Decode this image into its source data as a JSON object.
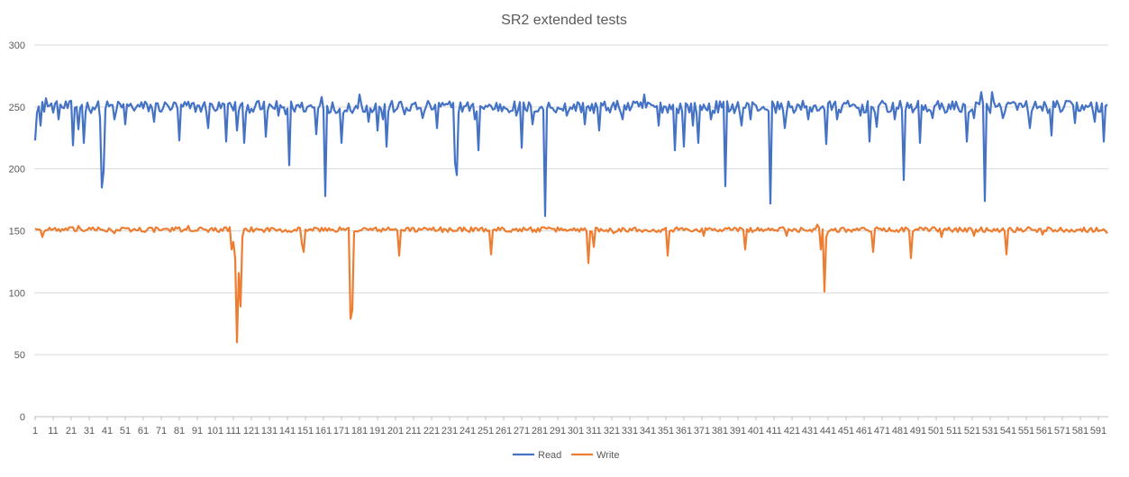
{
  "chart_data": {
    "type": "line",
    "title": "SR2 extended tests",
    "xlabel": "",
    "ylabel": "",
    "ylim": [
      0,
      300
    ],
    "yticks": [
      0,
      50,
      100,
      150,
      200,
      250,
      300
    ],
    "x_count": 596,
    "x_tick_labels": [
      "1",
      "11",
      "21",
      "31",
      "41",
      "51",
      "61",
      "71",
      "81",
      "91",
      "101",
      "111",
      "121",
      "131",
      "141",
      "151",
      "161",
      "171",
      "181",
      "191",
      "201",
      "211",
      "221",
      "231",
      "241",
      "251",
      "261",
      "271",
      "281",
      "291",
      "301",
      "311",
      "321",
      "331",
      "341",
      "351",
      "361",
      "371",
      "381",
      "391",
      "401",
      "411",
      "421",
      "431",
      "441",
      "451",
      "461",
      "471",
      "481",
      "491",
      "501",
      "511",
      "521",
      "531",
      "541",
      "551",
      "561",
      "571",
      "581",
      "591"
    ],
    "grid": "horizontal",
    "legend_position": "bottom",
    "series": [
      {
        "name": "Read",
        "color": "#4472C4",
        "baseline": 250,
        "baseline_noise": 5,
        "dips": [
          {
            "x": 1,
            "y": 223
          },
          {
            "x": 4,
            "y": 235
          },
          {
            "x": 7,
            "y": 257
          },
          {
            "x": 14,
            "y": 240
          },
          {
            "x": 22,
            "y": 219
          },
          {
            "x": 25,
            "y": 232
          },
          {
            "x": 28,
            "y": 221
          },
          {
            "x": 37,
            "y": 241
          },
          {
            "x": 38,
            "y": 185
          },
          {
            "x": 39,
            "y": 198
          },
          {
            "x": 45,
            "y": 240
          },
          {
            "x": 51,
            "y": 236
          },
          {
            "x": 67,
            "y": 238
          },
          {
            "x": 81,
            "y": 223
          },
          {
            "x": 97,
            "y": 233
          },
          {
            "x": 107,
            "y": 222
          },
          {
            "x": 113,
            "y": 231
          },
          {
            "x": 117,
            "y": 221
          },
          {
            "x": 129,
            "y": 226
          },
          {
            "x": 136,
            "y": 243
          },
          {
            "x": 140,
            "y": 244
          },
          {
            "x": 142,
            "y": 203
          },
          {
            "x": 152,
            "y": 250
          },
          {
            "x": 157,
            "y": 228
          },
          {
            "x": 160,
            "y": 258
          },
          {
            "x": 162,
            "y": 178
          },
          {
            "x": 168,
            "y": 245
          },
          {
            "x": 171,
            "y": 221
          },
          {
            "x": 181,
            "y": 260
          },
          {
            "x": 186,
            "y": 238
          },
          {
            "x": 191,
            "y": 231
          },
          {
            "x": 194,
            "y": 240
          },
          {
            "x": 196,
            "y": 218
          },
          {
            "x": 206,
            "y": 244
          },
          {
            "x": 216,
            "y": 241
          },
          {
            "x": 224,
            "y": 233
          },
          {
            "x": 234,
            "y": 205
          },
          {
            "x": 235,
            "y": 195
          },
          {
            "x": 245,
            "y": 240
          },
          {
            "x": 247,
            "y": 215
          },
          {
            "x": 268,
            "y": 243
          },
          {
            "x": 271,
            "y": 217
          },
          {
            "x": 277,
            "y": 236
          },
          {
            "x": 284,
            "y": 162
          },
          {
            "x": 289,
            "y": 247
          },
          {
            "x": 296,
            "y": 243
          },
          {
            "x": 306,
            "y": 236
          },
          {
            "x": 311,
            "y": 245
          },
          {
            "x": 314,
            "y": 231
          },
          {
            "x": 327,
            "y": 240
          },
          {
            "x": 339,
            "y": 260
          },
          {
            "x": 347,
            "y": 235
          },
          {
            "x": 356,
            "y": 215
          },
          {
            "x": 361,
            "y": 218
          },
          {
            "x": 366,
            "y": 235
          },
          {
            "x": 369,
            "y": 221
          },
          {
            "x": 376,
            "y": 240
          },
          {
            "x": 384,
            "y": 186
          },
          {
            "x": 393,
            "y": 235
          },
          {
            "x": 398,
            "y": 240
          },
          {
            "x": 407,
            "y": 248
          },
          {
            "x": 409,
            "y": 172
          },
          {
            "x": 417,
            "y": 233
          },
          {
            "x": 430,
            "y": 240
          },
          {
            "x": 440,
            "y": 220
          },
          {
            "x": 446,
            "y": 240
          },
          {
            "x": 459,
            "y": 243
          },
          {
            "x": 464,
            "y": 222
          },
          {
            "x": 468,
            "y": 234
          },
          {
            "x": 478,
            "y": 240
          },
          {
            "x": 483,
            "y": 191
          },
          {
            "x": 492,
            "y": 221
          },
          {
            "x": 499,
            "y": 241
          },
          {
            "x": 518,
            "y": 222
          },
          {
            "x": 522,
            "y": 241
          },
          {
            "x": 526,
            "y": 262
          },
          {
            "x": 528,
            "y": 174
          },
          {
            "x": 532,
            "y": 262
          },
          {
            "x": 538,
            "y": 241
          },
          {
            "x": 553,
            "y": 233
          },
          {
            "x": 558,
            "y": 250
          },
          {
            "x": 565,
            "y": 227
          },
          {
            "x": 573,
            "y": 255
          },
          {
            "x": 578,
            "y": 237
          },
          {
            "x": 585,
            "y": 250
          },
          {
            "x": 589,
            "y": 238
          },
          {
            "x": 592,
            "y": 246
          },
          {
            "x": 594,
            "y": 222
          },
          {
            "x": 596,
            "y": 252
          }
        ]
      },
      {
        "name": "Write",
        "color": "#ED7D31",
        "baseline": 151,
        "baseline_noise": 2,
        "dips": [
          {
            "x": 1,
            "y": 152
          },
          {
            "x": 5,
            "y": 145
          },
          {
            "x": 13,
            "y": 150
          },
          {
            "x": 25,
            "y": 154
          },
          {
            "x": 45,
            "y": 148
          },
          {
            "x": 86,
            "y": 154
          },
          {
            "x": 109,
            "y": 153
          },
          {
            "x": 110,
            "y": 135
          },
          {
            "x": 111,
            "y": 141
          },
          {
            "x": 112,
            "y": 128
          },
          {
            "x": 113,
            "y": 60
          },
          {
            "x": 114,
            "y": 116
          },
          {
            "x": 115,
            "y": 89
          },
          {
            "x": 116,
            "y": 145
          },
          {
            "x": 119,
            "y": 150
          },
          {
            "x": 149,
            "y": 140
          },
          {
            "x": 150,
            "y": 133
          },
          {
            "x": 176,
            "y": 79
          },
          {
            "x": 177,
            "y": 86
          },
          {
            "x": 203,
            "y": 130
          },
          {
            "x": 254,
            "y": 131
          },
          {
            "x": 308,
            "y": 124
          },
          {
            "x": 311,
            "y": 137
          },
          {
            "x": 322,
            "y": 148
          },
          {
            "x": 352,
            "y": 130
          },
          {
            "x": 372,
            "y": 146
          },
          {
            "x": 395,
            "y": 135
          },
          {
            "x": 418,
            "y": 146
          },
          {
            "x": 435,
            "y": 155
          },
          {
            "x": 437,
            "y": 135
          },
          {
            "x": 439,
            "y": 101
          },
          {
            "x": 440,
            "y": 145
          },
          {
            "x": 466,
            "y": 133
          },
          {
            "x": 487,
            "y": 128
          },
          {
            "x": 504,
            "y": 145
          },
          {
            "x": 522,
            "y": 146
          },
          {
            "x": 540,
            "y": 131
          },
          {
            "x": 560,
            "y": 147
          },
          {
            "x": 596,
            "y": 148
          }
        ]
      }
    ]
  }
}
